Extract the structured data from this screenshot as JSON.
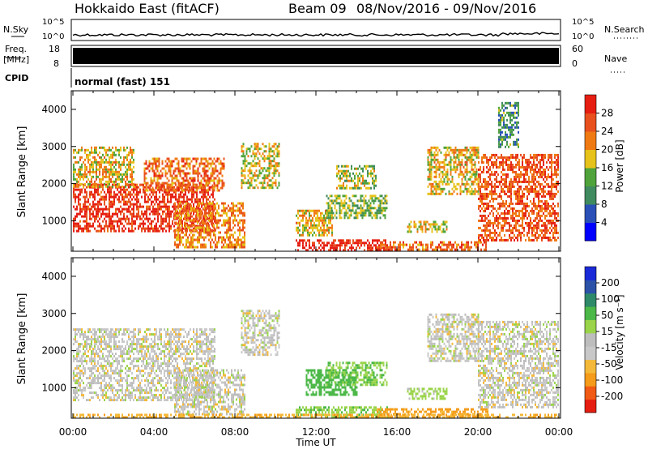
{
  "header": {
    "title": "Hokkaido East (fitACF)",
    "beam": "Beam 09",
    "date_range": "08/Nov/2016 - 09/Nov/2016"
  },
  "strip": {
    "nsky_label": "N.Sky",
    "nsearch_label": "N.Search",
    "noise_ticks_left": [
      "10^5",
      "10^0"
    ],
    "noise_ticks_right": [
      "10^5",
      "10^0"
    ],
    "freq_label_1": "Freq.",
    "freq_label_2": "[MHz]",
    "freq_ticks": [
      "18",
      "8"
    ],
    "nave_label": "Nave",
    "nave_ticks": [
      "60",
      "0"
    ],
    "cpid_label": "CPID",
    "cpid_value": "normal (fast) 151"
  },
  "colors": {
    "power": [
      "#0000ff",
      "#2a50b8",
      "#3f8a5e",
      "#4fa33a",
      "#e6c21a",
      "#f07a12",
      "#e8501e",
      "#e61e12"
    ],
    "velocity": [
      "#e61e12",
      "#f05a14",
      "#f49b1a",
      "#f4b93a",
      "#c8c8c8",
      "#bdbdbd",
      "#9ad44a",
      "#4cb848",
      "#2e8a68",
      "#2c52a8",
      "#1a2ad8"
    ]
  },
  "chart_data": [
    {
      "type": "heatmap",
      "name": "power_panel",
      "xlabel": "",
      "ylabel": "Slant Range [km]",
      "x_ticks": [
        "00:00",
        "04:00",
        "08:00",
        "12:00",
        "16:00",
        "20:00",
        "00:00"
      ],
      "y_ticks": [
        4000,
        3000,
        2000,
        1000
      ],
      "xlim_hours": [
        0,
        24
      ],
      "ylim_km": [
        180,
        4500
      ],
      "colorbar": {
        "label": "Power [dB]",
        "ticks": [
          "28",
          "24",
          "20",
          "16",
          "12",
          "8",
          "4"
        ],
        "range": [
          0,
          32
        ]
      },
      "regions": [
        {
          "t0": 0.0,
          "t1": 7.0,
          "r0": 700,
          "r1": 2000,
          "level": 0.9
        },
        {
          "t0": 0.0,
          "t1": 3.0,
          "r0": 1900,
          "r1": 3000,
          "level": 0.6
        },
        {
          "t0": 3.5,
          "t1": 7.5,
          "r0": 1800,
          "r1": 2700,
          "level": 0.75
        },
        {
          "t0": 5.0,
          "t1": 8.5,
          "r0": 300,
          "r1": 1500,
          "level": 0.7
        },
        {
          "t0": 8.3,
          "t1": 10.2,
          "r0": 1900,
          "r1": 3100,
          "level": 0.55
        },
        {
          "t0": 11.0,
          "t1": 12.8,
          "r0": 600,
          "r1": 1300,
          "level": 0.6
        },
        {
          "t0": 12.5,
          "t1": 15.5,
          "r0": 1100,
          "r1": 1700,
          "level": 0.45
        },
        {
          "t0": 13.0,
          "t1": 15.0,
          "r0": 1900,
          "r1": 2500,
          "level": 0.5
        },
        {
          "t0": 11.0,
          "t1": 15.5,
          "r0": 200,
          "r1": 500,
          "level": 0.95
        },
        {
          "t0": 15.0,
          "t1": 20.5,
          "r0": 200,
          "r1": 450,
          "level": 0.75
        },
        {
          "t0": 16.5,
          "t1": 18.5,
          "r0": 700,
          "r1": 1000,
          "level": 0.55
        },
        {
          "t0": 17.5,
          "t1": 20.0,
          "r0": 1700,
          "r1": 3000,
          "level": 0.6
        },
        {
          "t0": 20.0,
          "t1": 24.0,
          "r0": 500,
          "r1": 2800,
          "level": 0.8
        },
        {
          "t0": 21.0,
          "t1": 22.0,
          "r0": 3000,
          "r1": 4200,
          "level": 0.35
        }
      ]
    },
    {
      "type": "heatmap",
      "name": "velocity_panel",
      "xlabel": "Time UT",
      "ylabel": "Slant Range [km]",
      "x_ticks": [
        "00:00",
        "04:00",
        "08:00",
        "12:00",
        "16:00",
        "20:00",
        "00:00"
      ],
      "y_ticks": [
        4000,
        3000,
        2000,
        1000
      ],
      "xlim_hours": [
        0,
        24
      ],
      "ylim_km": [
        180,
        4500
      ],
      "colorbar": {
        "label": "Velocity [m s⁻¹]",
        "ticks": [
          "200",
          "100",
          "50",
          "15",
          "-15",
          "-50",
          "-100",
          "-200"
        ],
        "range": [
          -250,
          250
        ]
      },
      "regions": [
        {
          "t0": 0.0,
          "t1": 7.0,
          "r0": 700,
          "r1": 2600,
          "vel": 0
        },
        {
          "t0": 5.0,
          "t1": 8.5,
          "r0": 300,
          "r1": 1500,
          "vel": 0
        },
        {
          "t0": 8.3,
          "t1": 10.2,
          "r0": 1900,
          "r1": 3100,
          "vel": 0
        },
        {
          "t0": 11.5,
          "t1": 14.0,
          "r0": 800,
          "r1": 1500,
          "vel": 80
        },
        {
          "t0": 12.5,
          "t1": 15.5,
          "r0": 1100,
          "r1": 1700,
          "vel": 50
        },
        {
          "t0": 11.0,
          "t1": 15.5,
          "r0": 200,
          "r1": 500,
          "vel": 40
        },
        {
          "t0": 15.0,
          "t1": 20.5,
          "r0": 200,
          "r1": 450,
          "vel": -60
        },
        {
          "t0": 16.5,
          "t1": 18.5,
          "r0": 700,
          "r1": 1000,
          "vel": 30
        },
        {
          "t0": 17.5,
          "t1": 20.0,
          "r0": 1700,
          "r1": 3000,
          "vel": 0
        },
        {
          "t0": 20.0,
          "t1": 24.0,
          "r0": 500,
          "r1": 2800,
          "vel": 0
        },
        {
          "t0": 0.0,
          "t1": 24.0,
          "r0": 180,
          "r1": 300,
          "vel": -40
        }
      ]
    }
  ]
}
